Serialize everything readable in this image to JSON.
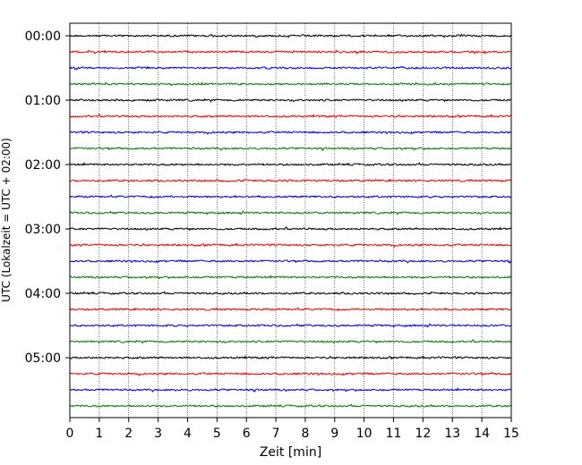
{
  "chart_data": {
    "type": "line",
    "subtype": "helicorder",
    "xlabel": "Zeit  [min]",
    "ylabel": "UTC (Lokalzeit = UTC + 02:00)",
    "xlim": [
      0,
      15
    ],
    "x_ticks": [
      "0",
      "1",
      "2",
      "3",
      "4",
      "5",
      "6",
      "7",
      "8",
      "9",
      "10",
      "11",
      "12",
      "13",
      "14",
      "15"
    ],
    "row_minutes": 15,
    "row_count": 24,
    "y_tick_labels": [
      "00:00",
      "01:00",
      "02:00",
      "03:00",
      "04:00",
      "05:00"
    ],
    "trace_colors": [
      "#000000",
      "#ff0000",
      "#0000ff",
      "#008000"
    ],
    "grid": "vertical dotted lines at each minute",
    "rows": [
      {
        "start": "00:00",
        "color": "#000000"
      },
      {
        "start": "00:15",
        "color": "#ff0000"
      },
      {
        "start": "00:30",
        "color": "#0000ff"
      },
      {
        "start": "00:45",
        "color": "#008000"
      },
      {
        "start": "01:00",
        "color": "#000000"
      },
      {
        "start": "01:15",
        "color": "#ff0000"
      },
      {
        "start": "01:30",
        "color": "#0000ff"
      },
      {
        "start": "01:45",
        "color": "#008000"
      },
      {
        "start": "02:00",
        "color": "#000000"
      },
      {
        "start": "02:15",
        "color": "#ff0000"
      },
      {
        "start": "02:30",
        "color": "#0000ff"
      },
      {
        "start": "02:45",
        "color": "#008000"
      },
      {
        "start": "03:00",
        "color": "#000000"
      },
      {
        "start": "03:15",
        "color": "#ff0000"
      },
      {
        "start": "03:30",
        "color": "#0000ff"
      },
      {
        "start": "03:45",
        "color": "#008000"
      },
      {
        "start": "04:00",
        "color": "#000000"
      },
      {
        "start": "04:15",
        "color": "#ff0000"
      },
      {
        "start": "04:30",
        "color": "#0000ff"
      },
      {
        "start": "04:45",
        "color": "#008000"
      },
      {
        "start": "05:00",
        "color": "#000000"
      },
      {
        "start": "05:15",
        "color": "#ff0000"
      },
      {
        "start": "05:30",
        "color": "#0000ff"
      },
      {
        "start": "05:45",
        "color": "#008000"
      }
    ]
  }
}
